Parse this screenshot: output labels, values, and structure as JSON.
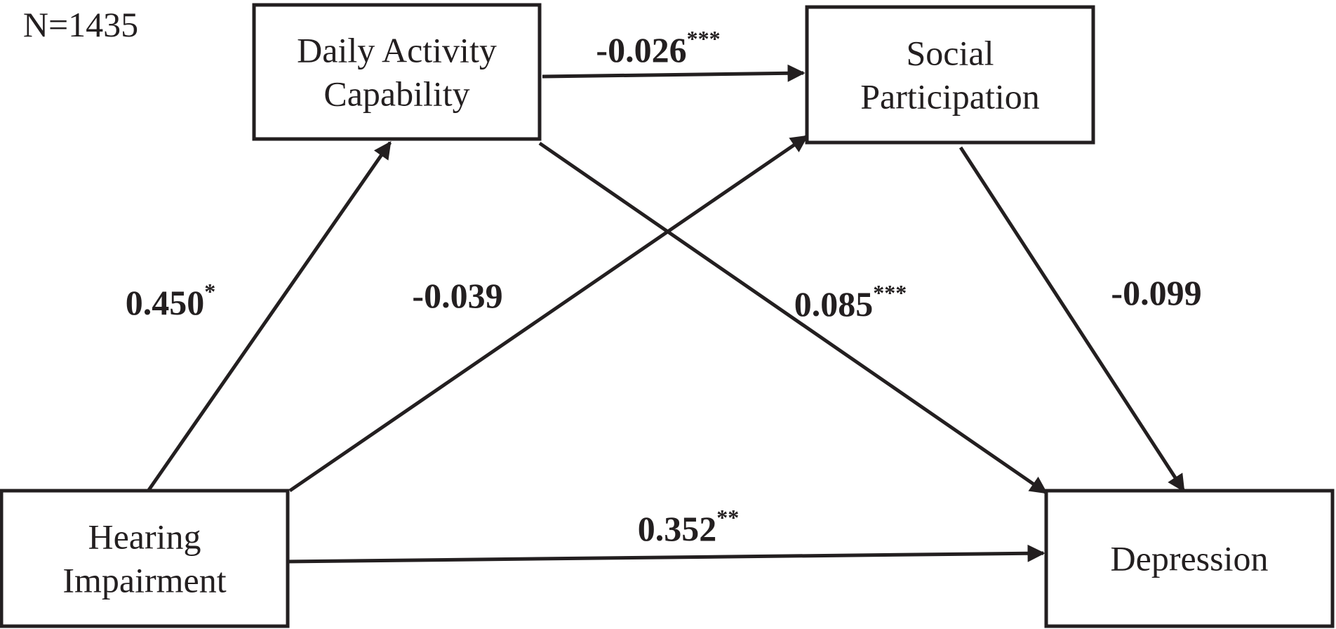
{
  "sample_size": "N=1435",
  "nodes": [
    {
      "label": [
        "Daily Activity",
        "Capability"
      ]
    },
    {
      "label": [
        "Social",
        "Participation"
      ]
    },
    {
      "label": [
        "Hearing",
        "Impairment"
      ]
    },
    {
      "label": [
        "Depression"
      ]
    }
  ],
  "edges": [
    {
      "from": "Daily Activity Capability",
      "to": "Social Participation",
      "coefficient": "-0.026",
      "significance": "***"
    },
    {
      "from": "Hearing Impairment",
      "to": "Daily Activity Capability",
      "coefficient": "0.450",
      "significance": "*"
    },
    {
      "from": "Hearing Impairment",
      "to": "Social Participation",
      "coefficient": "-0.039"
    },
    {
      "from": "Daily Activity Capability",
      "to": "Depression",
      "coefficient": "0.085",
      "significance": "***"
    },
    {
      "from": "Social Participation",
      "to": "Depression",
      "coefficient": "-0.099"
    },
    {
      "from": "Hearing Impairment",
      "to": "Depression",
      "coefficient": "0.352",
      "significance": "**"
    }
  ]
}
